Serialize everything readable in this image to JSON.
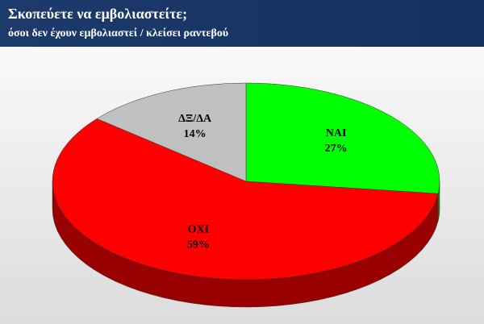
{
  "chart_data": {
    "type": "pie",
    "title": "Σκοπεύετε να εμβολιαστείτε;",
    "subtitle": "όσοι δεν έχουν εμβολιαστεί / κλείσει ραντεβού",
    "categories": [
      "ΝΑΙ",
      "ΟΧΙ",
      "ΔΞ/ΔΑ"
    ],
    "values": [
      27,
      59,
      14
    ],
    "value_labels": [
      "27%",
      "59%",
      "14%"
    ],
    "colors": [
      "#00ff00",
      "#ff0000",
      "#c0c0c0"
    ]
  }
}
